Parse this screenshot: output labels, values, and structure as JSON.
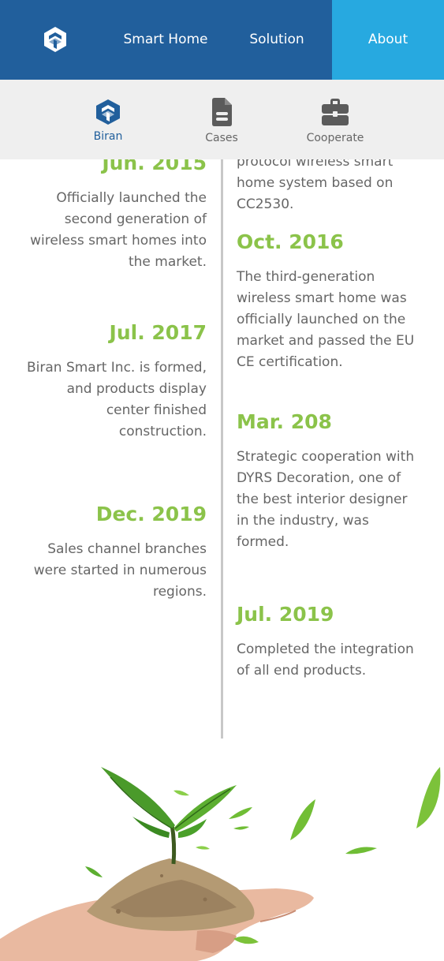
{
  "nav": {
    "items": [
      {
        "label": "Smart Home"
      },
      {
        "label": "Solution"
      },
      {
        "label": "About"
      }
    ]
  },
  "subnav": {
    "items": [
      {
        "label": "Biran",
        "icon": "cube-logo-icon"
      },
      {
        "label": "Cases",
        "icon": "document-icon"
      },
      {
        "label": "Cooperate",
        "icon": "briefcase-icon"
      }
    ]
  },
  "timeline": {
    "left": [
      {
        "year": "Jun. 2015",
        "desc": "Officially launched the second generation of wireless smart homes into the market."
      },
      {
        "year": "Jul. 2017",
        "desc": "Biran Smart Inc. is formed, and products display center finished construction."
      },
      {
        "year": "Dec. 2019",
        "desc": "Sales channel branches were started in numerous regions."
      }
    ],
    "right": [
      {
        "year": "",
        "desc": "protocol wireless smart home system based on CC2530."
      },
      {
        "year": "Oct. 2016",
        "desc": "The third-generation wireless smart home was officially launched on the market and passed the EU CE certification."
      },
      {
        "year": "Mar. 208",
        "desc": "Strategic cooperation with DYRS Decoration, one of the best interior designer in the industry, was formed."
      },
      {
        "year": "Jul. 2019",
        "desc": "Completed the integration of all end products."
      }
    ]
  },
  "colors": {
    "nav_bg": "#215f9c",
    "nav_active": "#27a9e0",
    "year_green": "#8bc34a",
    "subnav_bg": "#efefef"
  }
}
